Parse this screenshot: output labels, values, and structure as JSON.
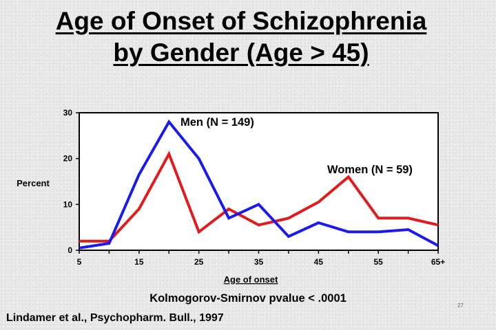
{
  "slide": {
    "title_line1": "Age of Onset of Schizophrenia",
    "title_line2": "by Gender  (Age > 45)",
    "stat_note": "Kolmogorov-Smirnov pvalue < .0001",
    "citation": "Lindamer et al., Psychopharm. Bull., 1997",
    "slide_number": "27"
  },
  "chart_data": {
    "type": "line",
    "title": "",
    "xlabel": "Age of onset",
    "ylabel": "Percent",
    "x": [
      "5",
      "10",
      "15",
      "20",
      "25",
      "30",
      "35",
      "40",
      "45",
      "50",
      "55",
      "60",
      "65+"
    ],
    "x_tick_labels": [
      "5",
      "15",
      "25",
      "35",
      "45",
      "55",
      "65+"
    ],
    "y_ticks": [
      0,
      10,
      20,
      30
    ],
    "ylim": [
      0,
      30
    ],
    "grid": false,
    "series": [
      {
        "name": "Men (N = 149)",
        "color": "#1a1aee",
        "values": [
          0.5,
          1.5,
          16.5,
          28,
          20,
          7,
          10,
          3,
          6,
          4,
          4,
          4.5,
          1
        ]
      },
      {
        "name": "Women (N = 59)",
        "color": "#e11b1b",
        "values": [
          2,
          2,
          9,
          21,
          4,
          9,
          5.5,
          7,
          10.5,
          16,
          7,
          7,
          5.5
        ]
      }
    ]
  }
}
